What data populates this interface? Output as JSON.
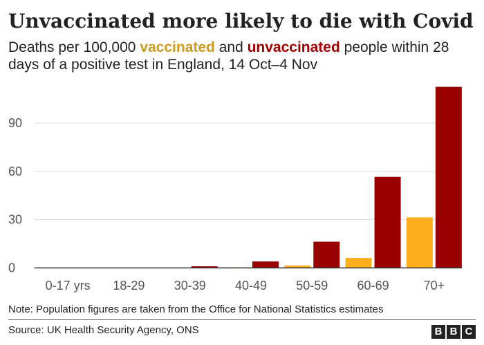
{
  "chart_data": {
    "type": "bar",
    "title": "Unvaccinated more likely to die with Covid",
    "subtitle": {
      "part1": "Deaths per 100,000 ",
      "vaccinated": "vaccinated",
      "part2": " and ",
      "unvaccinated": "unvaccinated",
      "part3": " people within 28 days of a positive test in England, 14 Oct–4 Nov"
    },
    "categories": [
      "0-17 yrs",
      "18-29",
      "30-39",
      "40-49",
      "50-59",
      "60-69",
      "70+"
    ],
    "series": [
      {
        "name": "vaccinated",
        "color": "#fbae1b",
        "values": [
          0,
          0,
          0,
          0.3,
          1.5,
          6.2,
          31.4
        ]
      },
      {
        "name": "unvaccinated",
        "color": "#990000",
        "values": [
          0,
          0.1,
          1.0,
          4.0,
          16.3,
          56.6,
          112.5
        ]
      }
    ],
    "yticks": [
      0,
      30,
      60,
      90
    ],
    "ylim": [
      0,
      120
    ],
    "grid": true,
    "xlabel": "",
    "ylabel": ""
  },
  "footer": {
    "note": "Note: Population figures are taken from the Office for National Statistics estimates",
    "source": "Source: UK Health Security Agency, ONS",
    "logo": [
      "B",
      "B",
      "C"
    ]
  }
}
